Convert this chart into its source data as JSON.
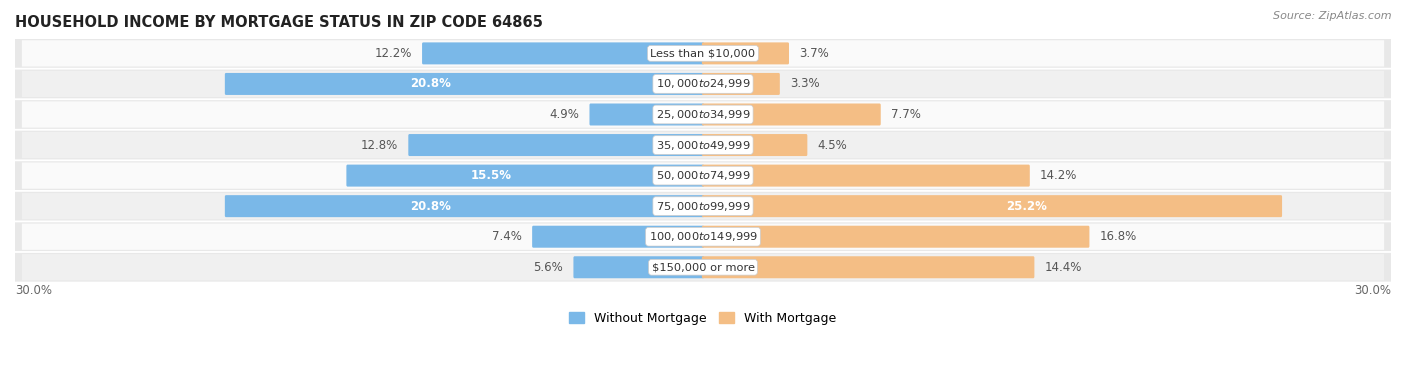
{
  "title": "HOUSEHOLD INCOME BY MORTGAGE STATUS IN ZIP CODE 64865",
  "source": "Source: ZipAtlas.com",
  "categories": [
    "Less than $10,000",
    "$10,000 to $24,999",
    "$25,000 to $34,999",
    "$35,000 to $49,999",
    "$50,000 to $74,999",
    "$75,000 to $99,999",
    "$100,000 to $149,999",
    "$150,000 or more"
  ],
  "without_mortgage": [
    12.2,
    20.8,
    4.9,
    12.8,
    15.5,
    20.8,
    7.4,
    5.6
  ],
  "with_mortgage": [
    3.7,
    3.3,
    7.7,
    4.5,
    14.2,
    25.2,
    16.8,
    14.4
  ],
  "color_without": "#7ab8e8",
  "color_with": "#f4be85",
  "bg_row_light": "#f0f0f0",
  "bg_row_white": "#fafafa",
  "bg_outer": "#e8e8e8",
  "axis_min": -30.0,
  "axis_max": 30.0,
  "legend_without": "Without Mortgage",
  "legend_with": "With Mortgage",
  "title_fontsize": 10.5,
  "label_fontsize": 8.5,
  "category_fontsize": 8.2,
  "source_fontsize": 8.0,
  "white_threshold_wo": 13.0,
  "white_threshold_wm": 18.0
}
